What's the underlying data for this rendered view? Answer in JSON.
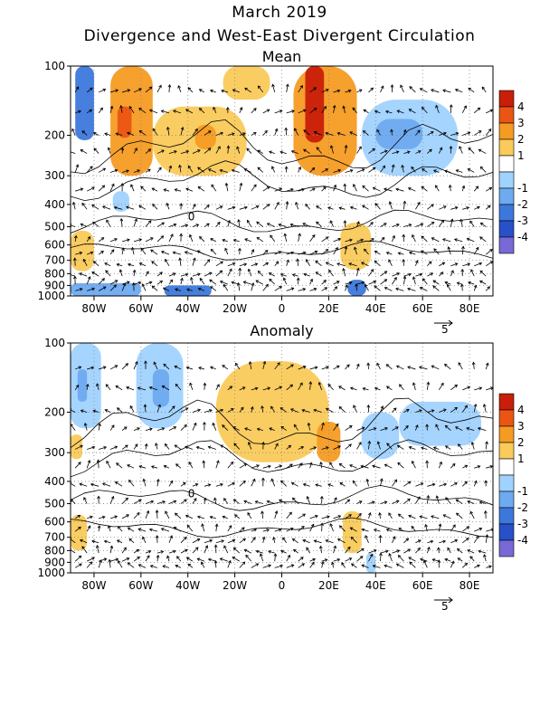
{
  "page": {
    "title": "March 2019",
    "subtitle": "Divergence and West-East Divergent Circulation"
  },
  "chart_data": [
    {
      "type": "heatmap",
      "title": "Mean",
      "x_ticks": [
        "80W",
        "60W",
        "40W",
        "20W",
        "0",
        "20E",
        "40E",
        "60E",
        "80E"
      ],
      "x_tick_values": [
        -80,
        -60,
        -40,
        -20,
        0,
        20,
        40,
        60,
        80
      ],
      "xlim": [
        -90,
        90
      ],
      "y_ticks": [
        "100",
        "200",
        "300",
        "400",
        "500",
        "600",
        "700",
        "800",
        "900",
        "1000"
      ],
      "y_tick_values": [
        100,
        200,
        300,
        400,
        500,
        600,
        700,
        800,
        900,
        1000
      ],
      "ylim": [
        1000,
        100
      ],
      "y_scale": "log",
      "vector_scale_label": "5",
      "colorbar": {
        "labels": [
          "4",
          "3",
          "2",
          "1",
          "-1",
          "-2",
          "-3",
          "-4"
        ],
        "colors": [
          "#c81e0a",
          "#eb5514",
          "#f59b23",
          "#faca5a",
          "#ffffff",
          "#a0d2ff",
          "#6eaaf0",
          "#3c78dc",
          "#2850c8",
          "#7869d7"
        ]
      },
      "contour_labels": [
        "0"
      ],
      "regions": [
        {
          "x": [
            -88,
            -80
          ],
          "p": [
            100,
            210
          ],
          "v": -3
        },
        {
          "x": [
            -73,
            -55
          ],
          "p": [
            100,
            300
          ],
          "v": 2
        },
        {
          "x": [
            -70,
            -64
          ],
          "p": [
            150,
            205
          ],
          "v": 3
        },
        {
          "x": [
            -55,
            -15
          ],
          "p": [
            150,
            300
          ],
          "v": 1.5
        },
        {
          "x": [
            -37,
            -28
          ],
          "p": [
            180,
            230
          ],
          "v": 2
        },
        {
          "x": [
            -25,
            -5
          ],
          "p": [
            100,
            140
          ],
          "v": 1.5
        },
        {
          "x": [
            5,
            32
          ],
          "p": [
            100,
            300
          ],
          "v": 2
        },
        {
          "x": [
            10,
            18
          ],
          "p": [
            100,
            215
          ],
          "v": 3.5
        },
        {
          "x": [
            34,
            75
          ],
          "p": [
            140,
            300
          ],
          "v": -1.5
        },
        {
          "x": [
            40,
            60
          ],
          "p": [
            170,
            230
          ],
          "v": -2
        },
        {
          "x": [
            -90,
            -80
          ],
          "p": [
            520,
            780
          ],
          "v": 1.5
        },
        {
          "x": [
            25,
            38
          ],
          "p": [
            480,
            770
          ],
          "v": 1.5
        },
        {
          "x": [
            -72,
            -65
          ],
          "p": [
            350,
            430
          ],
          "v": -1.5
        },
        {
          "x": [
            -90,
            -60
          ],
          "p": [
            880,
            1000
          ],
          "v": -2
        },
        {
          "x": [
            -50,
            -30
          ],
          "p": [
            900,
            1000
          ],
          "v": -2.5
        },
        {
          "x": [
            28,
            36
          ],
          "p": [
            850,
            1000
          ],
          "v": -3
        }
      ]
    },
    {
      "type": "heatmap",
      "title": "Anomaly",
      "x_ticks": [
        "80W",
        "60W",
        "40W",
        "20W",
        "0",
        "20E",
        "40E",
        "60E",
        "80E"
      ],
      "x_tick_values": [
        -80,
        -60,
        -40,
        -20,
        0,
        20,
        40,
        60,
        80
      ],
      "xlim": [
        -90,
        90
      ],
      "y_ticks": [
        "100",
        "200",
        "300",
        "400",
        "500",
        "600",
        "700",
        "800",
        "900",
        "1000"
      ],
      "y_tick_values": [
        100,
        200,
        300,
        400,
        500,
        600,
        700,
        800,
        900,
        1000
      ],
      "ylim": [
        1000,
        100
      ],
      "y_scale": "log",
      "vector_scale_label": "5",
      "colorbar": {
        "labels": [
          "4",
          "3",
          "2",
          "1",
          "-1",
          "-2",
          "-3",
          "-4"
        ],
        "colors": [
          "#c81e0a",
          "#eb5514",
          "#f59b23",
          "#faca5a",
          "#ffffff",
          "#a0d2ff",
          "#6eaaf0",
          "#3c78dc",
          "#2850c8",
          "#7869d7"
        ]
      },
      "contour_labels": [
        "0"
      ],
      "regions": [
        {
          "x": [
            -90,
            -77
          ],
          "p": [
            100,
            235
          ],
          "v": -1.5
        },
        {
          "x": [
            -87,
            -83
          ],
          "p": [
            130,
            180
          ],
          "v": -2
        },
        {
          "x": [
            -62,
            -42
          ],
          "p": [
            100,
            235
          ],
          "v": -1.5
        },
        {
          "x": [
            -55,
            -48
          ],
          "p": [
            130,
            190
          ],
          "v": -2
        },
        {
          "x": [
            -28,
            20
          ],
          "p": [
            120,
            330
          ],
          "v": 1.5
        },
        {
          "x": [
            15,
            25
          ],
          "p": [
            220,
            330
          ],
          "v": 2
        },
        {
          "x": [
            34,
            50
          ],
          "p": [
            200,
            320
          ],
          "v": -1.5
        },
        {
          "x": [
            50,
            85
          ],
          "p": [
            180,
            280
          ],
          "v": -1.5
        },
        {
          "x": [
            -90,
            -83
          ],
          "p": [
            560,
            800
          ],
          "v": 1.5
        },
        {
          "x": [
            26,
            34
          ],
          "p": [
            540,
            820
          ],
          "v": 1.5
        },
        {
          "x": [
            -90,
            -85
          ],
          "p": [
            250,
            320
          ],
          "v": 1.5
        },
        {
          "x": [
            36,
            40
          ],
          "p": [
            820,
            1000
          ],
          "v": -1.5
        }
      ]
    }
  ]
}
